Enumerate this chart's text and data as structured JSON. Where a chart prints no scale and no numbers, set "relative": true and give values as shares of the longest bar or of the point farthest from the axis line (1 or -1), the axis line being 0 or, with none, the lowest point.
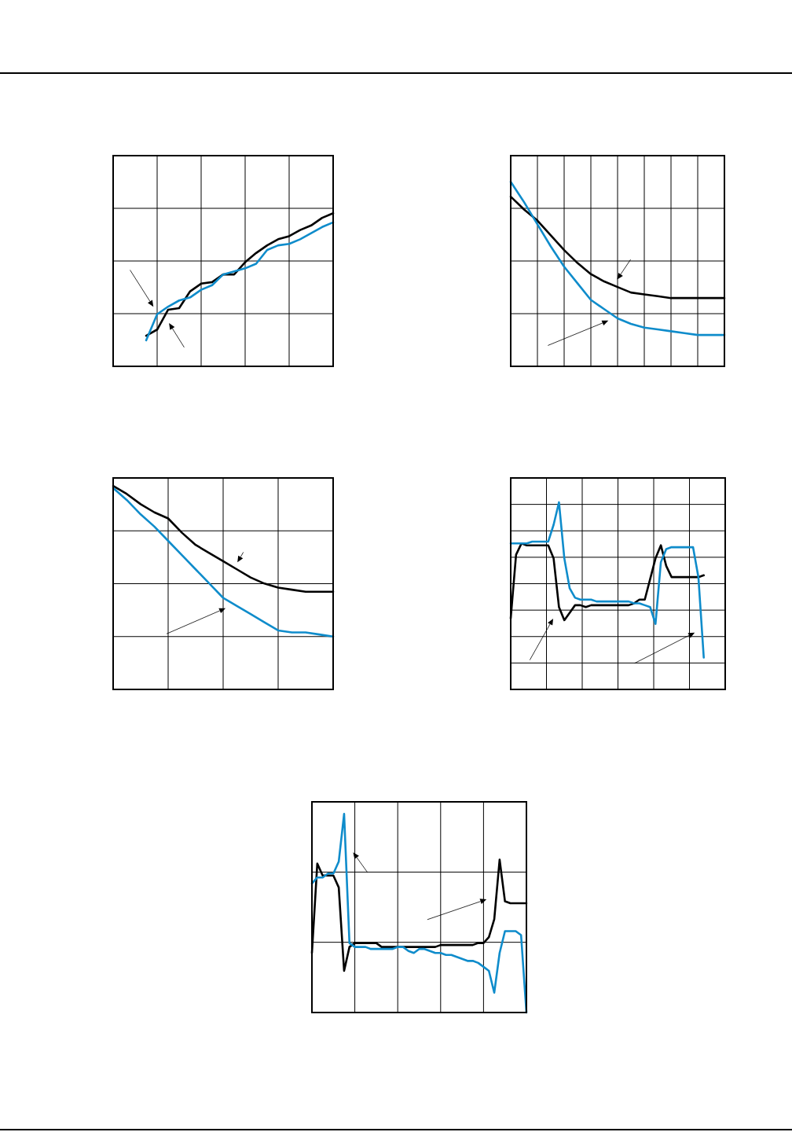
{
  "chart_data": [
    {
      "type": "line",
      "relative": true,
      "grid": true,
      "categories": [
        null,
        null,
        null,
        null,
        null,
        null,
        null,
        null,
        null,
        null,
        null,
        null,
        null,
        null,
        null,
        null,
        null,
        null,
        null,
        null,
        null
      ],
      "series": [
        {
          "color": "#000000",
          "values": [
            null,
            null,
            null,
            0.2,
            0.24,
            0.37,
            0.38,
            0.49,
            0.54,
            0.55,
            0.6,
            0.6,
            0.68,
            0.74,
            0.79,
            0.83,
            0.85,
            0.89,
            0.92,
            0.97,
            1
          ]
        },
        {
          "color": "#0f8ccb",
          "values": [
            null,
            null,
            null,
            0.17,
            0.34,
            0.39,
            0.43,
            0.45,
            0.5,
            0.53,
            0.6,
            0.62,
            0.64,
            0.67,
            0.76,
            0.79,
            0.8,
            0.83,
            0.87,
            0.91,
            0.94
          ]
        }
      ]
    },
    {
      "type": "line",
      "relative": true,
      "grid": true,
      "categories": [
        null,
        null,
        null,
        null,
        null,
        null,
        null,
        null,
        null,
        null,
        null,
        null,
        null,
        null,
        null,
        null,
        null
      ],
      "series": [
        {
          "color": "#000000",
          "values": [
            0.92,
            0.85,
            0.79,
            0.71,
            0.63,
            0.56,
            0.5,
            0.46,
            0.43,
            0.4,
            0.39,
            0.38,
            0.37,
            0.37,
            0.37,
            0.37,
            0.37
          ]
        },
        {
          "color": "#0f8ccb",
          "values": [
            1,
            0.89,
            0.77,
            0.65,
            0.54,
            0.45,
            0.36,
            0.31,
            0.26,
            0.23,
            0.21,
            0.2,
            0.19,
            0.18,
            0.17,
            0.17,
            0.17
          ]
        }
      ]
    },
    {
      "type": "line",
      "relative": true,
      "grid": true,
      "categories": [
        null,
        null,
        null,
        null,
        null,
        null,
        null,
        null,
        null,
        null,
        null,
        null,
        null,
        null,
        null,
        null,
        null
      ],
      "series": [
        {
          "color": "#000000",
          "values": [
            1,
            0.96,
            0.91,
            0.87,
            0.84,
            0.77,
            0.71,
            0.67,
            0.63,
            0.59,
            0.55,
            0.52,
            0.5,
            0.49,
            0.48,
            0.48,
            0.48
          ]
        },
        {
          "color": "#0f8ccb",
          "values": [
            0.99,
            0.93,
            0.86,
            0.8,
            0.73,
            0.66,
            0.59,
            0.52,
            0.45,
            0.41,
            0.37,
            0.33,
            0.29,
            0.28,
            0.28,
            0.27,
            0.26
          ]
        }
      ]
    },
    {
      "type": "line",
      "relative": true,
      "grid": true,
      "categories": [
        null,
        null,
        null,
        null,
        null,
        null,
        null,
        null,
        null,
        null,
        null,
        null,
        null,
        null,
        null,
        null,
        null,
        null,
        null,
        null,
        null,
        null,
        null,
        null,
        null,
        null,
        null,
        null,
        null,
        null,
        null,
        null,
        null,
        null,
        null,
        null,
        null,
        null,
        null,
        null,
        null
      ],
      "series": [
        {
          "color": "#000000",
          "values": [
            0.38,
            0.72,
            0.78,
            0.77,
            0.77,
            0.77,
            0.77,
            0.77,
            0.7,
            0.44,
            0.37,
            0.41,
            0.45,
            0.45,
            0.44,
            0.45,
            0.45,
            0.45,
            0.45,
            0.45,
            0.45,
            0.45,
            0.45,
            0.46,
            0.48,
            0.48,
            0.59,
            0.7,
            0.77,
            0.66,
            0.6,
            0.6,
            0.6,
            0.6,
            0.6,
            0.6,
            0.61,
            null,
            null,
            null,
            null
          ]
        },
        {
          "color": "#0f8ccb",
          "values": [
            0.78,
            0.78,
            0.78,
            0.78,
            0.79,
            0.79,
            0.79,
            0.79,
            0.88,
            1,
            0.7,
            0.54,
            0.49,
            0.48,
            0.48,
            0.48,
            0.47,
            0.47,
            0.47,
            0.47,
            0.47,
            0.47,
            0.47,
            0.46,
            0.46,
            0.45,
            0.44,
            0.35,
            0.68,
            0.75,
            0.76,
            0.76,
            0.76,
            0.76,
            0.76,
            0.6,
            0.17,
            null,
            null,
            null,
            null
          ]
        }
      ]
    },
    {
      "type": "line",
      "relative": true,
      "grid": true,
      "categories": [
        null,
        null,
        null,
        null,
        null,
        null,
        null,
        null,
        null,
        null,
        null,
        null,
        null,
        null,
        null,
        null,
        null,
        null,
        null,
        null,
        null,
        null,
        null,
        null,
        null,
        null,
        null,
        null,
        null,
        null,
        null,
        null,
        null,
        null,
        null,
        null,
        null,
        null,
        null,
        null,
        null
      ],
      "series": [
        {
          "color": "#000000",
          "values": [
            0.3,
            0.75,
            0.69,
            0.69,
            0.69,
            0.63,
            0.21,
            0.33,
            0.35,
            0.35,
            0.35,
            0.35,
            0.35,
            0.33,
            0.33,
            0.33,
            0.33,
            0.33,
            0.33,
            0.33,
            0.33,
            0.33,
            0.33,
            0.33,
            0.34,
            0.34,
            0.34,
            0.34,
            0.34,
            0.34,
            0.34,
            0.35,
            0.35,
            0.38,
            0.47,
            0.77,
            0.56,
            0.55,
            0.55,
            0.55,
            0.55
          ]
        },
        {
          "color": "#0f8ccb",
          "values": [
            0.65,
            0.68,
            0.68,
            0.7,
            0.7,
            0.76,
            1,
            0.35,
            0.33,
            0.33,
            0.33,
            0.32,
            0.32,
            0.32,
            0.32,
            0.32,
            0.33,
            0.33,
            0.31,
            0.3,
            0.32,
            0.32,
            0.31,
            0.3,
            0.3,
            0.29,
            0.29,
            0.28,
            0.27,
            0.26,
            0.26,
            0.25,
            0.23,
            0.21,
            0.1,
            0.3,
            0.41,
            0.41,
            0.41,
            0.39,
            0
          ]
        }
      ]
    }
  ]
}
